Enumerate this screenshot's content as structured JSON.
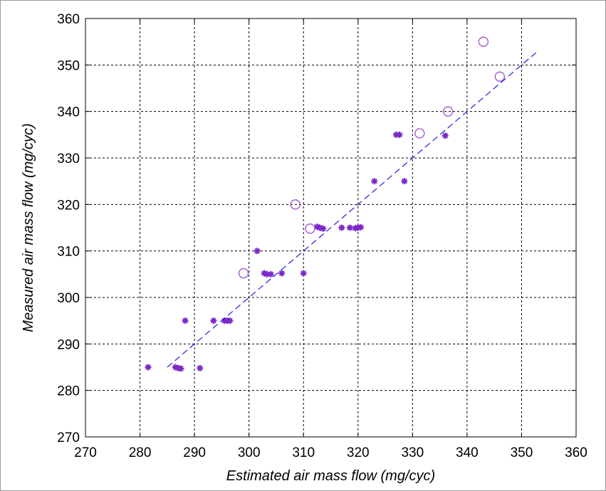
{
  "chart_data": {
    "type": "scatter",
    "title": "",
    "xlabel": "Estimated air mass flow (mg/cyc)",
    "ylabel": "Measured air mass flow (mg/cyc)",
    "xlim": [
      270,
      360
    ],
    "ylim": [
      270,
      360
    ],
    "xticks": [
      270,
      280,
      290,
      300,
      310,
      320,
      330,
      340,
      350,
      360
    ],
    "yticks": [
      270,
      280,
      290,
      300,
      310,
      320,
      330,
      340,
      350,
      360
    ],
    "grid": true,
    "legend": "none",
    "series": [
      {
        "marker": "asterisk",
        "color": "#7b28c8",
        "x": [
          281.5,
          286.5,
          287.0,
          287.5,
          288.3,
          291.0,
          293.5,
          295.5,
          296.0,
          296.5,
          301.5,
          302.8,
          303.3,
          304.0,
          306.0,
          310.0,
          312.5,
          313.0,
          313.6,
          317.0,
          318.5,
          319.5,
          320.0,
          320.5,
          323.0,
          327.0,
          327.6,
          328.5,
          336.0
        ],
        "y": [
          285.0,
          285.0,
          284.8,
          284.7,
          295.0,
          284.8,
          295.0,
          295.0,
          295.0,
          295.0,
          310.0,
          305.2,
          305.0,
          305.0,
          305.2,
          305.2,
          315.2,
          315.0,
          314.8,
          315.0,
          315.0,
          314.9,
          315.0,
          315.1,
          325.0,
          335.0,
          335.0,
          325.0,
          334.8
        ]
      },
      {
        "marker": "circle",
        "color": "#a04fd0",
        "x": [
          299.0,
          308.5,
          311.2,
          331.3,
          336.5,
          343.0,
          346.0
        ],
        "y": [
          305.2,
          320.0,
          314.8,
          335.3,
          340.0,
          355.0,
          347.5
        ]
      },
      {
        "marker": "line",
        "style": "dashed",
        "color": "#2020e0",
        "x": [
          285.0,
          353.0
        ],
        "y": [
          285.0,
          353.0
        ]
      }
    ]
  }
}
